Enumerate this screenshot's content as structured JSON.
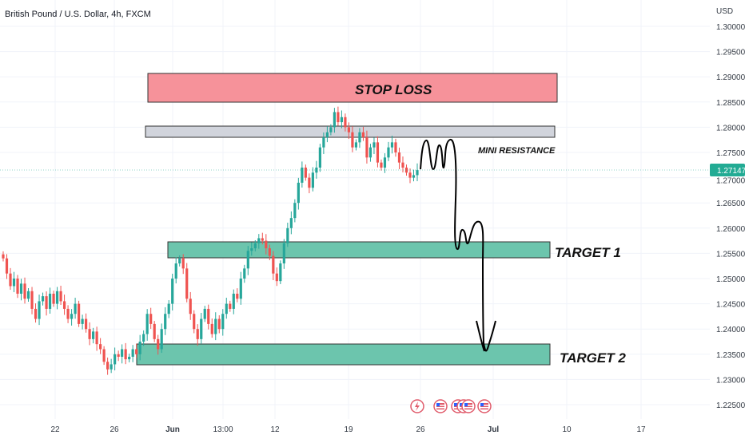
{
  "header": {
    "symbol_title": "British Pound / U.S. Dollar, 4h, FXCM",
    "currency": "USD"
  },
  "price_label": "1.27147",
  "annotations": {
    "stop_loss": "STOP LOSS",
    "mini_resistance": "MINI RESISTANCE",
    "target_1": "TARGET 1",
    "target_2": "TARGET 2"
  },
  "colors": {
    "up": "#26a69a",
    "down": "#ef5350",
    "stop_zone": "#f6929a",
    "resistance_zone": "#d1d4dc",
    "target_zone": "#6cc5ad",
    "price_tag": "#22ab94"
  },
  "event_icons": [
    "lightning-icon",
    "us-flag-icon",
    "us-flag-icon",
    "us-flag-icon",
    "us-flag-icon",
    "us-flag-icon"
  ],
  "chart_data": {
    "type": "candlestick",
    "title": "British Pound / U.S. Dollar, 4h, FXCM",
    "ylabel": "USD",
    "ylim": [
      1.222,
      1.3035
    ],
    "y_ticks": [
      "1.30000",
      "1.29500",
      "1.29000",
      "1.28500",
      "1.28000",
      "1.27500",
      "1.27000",
      "1.26500",
      "1.26000",
      "1.25500",
      "1.25000",
      "1.24500",
      "1.24000",
      "1.23500",
      "1.23000",
      "1.22500"
    ],
    "x_ticks": [
      "22",
      "26",
      "Jun",
      "13:00",
      "12",
      "19",
      "26",
      "Jul",
      "10",
      "17"
    ],
    "last_price": 1.27147,
    "candles_close": [
      1.254,
      1.251,
      1.2485,
      1.25,
      1.247,
      1.249,
      1.246,
      1.2475,
      1.244,
      1.242,
      1.2455,
      1.2465,
      1.244,
      1.247,
      1.245,
      1.2475,
      1.2455,
      1.244,
      1.242,
      1.243,
      1.245,
      1.241,
      1.242,
      1.24,
      1.238,
      1.2395,
      1.237,
      1.236,
      1.2335,
      1.232,
      1.233,
      1.235,
      1.2345,
      1.236,
      1.234,
      1.2345,
      1.236,
      1.235,
      1.2375,
      1.239,
      1.243,
      1.241,
      1.238,
      1.236,
      1.24,
      1.243,
      1.245,
      1.25,
      1.253,
      1.254,
      1.252,
      1.246,
      1.243,
      1.24,
      1.238,
      1.242,
      1.244,
      1.241,
      1.239,
      1.242,
      1.24,
      1.243,
      1.245,
      1.244,
      1.247,
      1.246,
      1.25,
      1.252,
      1.2555,
      1.256,
      1.257,
      1.258,
      1.2575,
      1.256,
      1.2545,
      1.251,
      1.2495,
      1.253,
      1.257,
      1.26,
      1.262,
      1.265,
      1.269,
      1.272,
      1.27,
      1.268,
      1.271,
      1.272,
      1.276,
      1.278,
      1.279,
      1.28,
      1.283,
      1.281,
      1.282,
      1.28,
      1.279,
      1.276,
      1.277,
      1.279,
      1.278,
      1.274,
      1.276,
      1.277,
      1.273,
      1.272,
      1.274,
      1.276,
      1.277,
      1.275,
      1.273,
      1.272,
      1.271,
      1.27,
      1.2705,
      1.2715
    ],
    "zones": [
      {
        "label": "STOP LOSS",
        "low": 1.2855,
        "high": 1.291
      },
      {
        "label": "MINI RESISTANCE",
        "low": 1.2785,
        "high": 1.2805
      },
      {
        "label": "TARGET 1",
        "low": 1.2542,
        "high": 1.2572
      },
      {
        "label": "TARGET 2",
        "low": 1.233,
        "high": 1.2372
      }
    ]
  }
}
